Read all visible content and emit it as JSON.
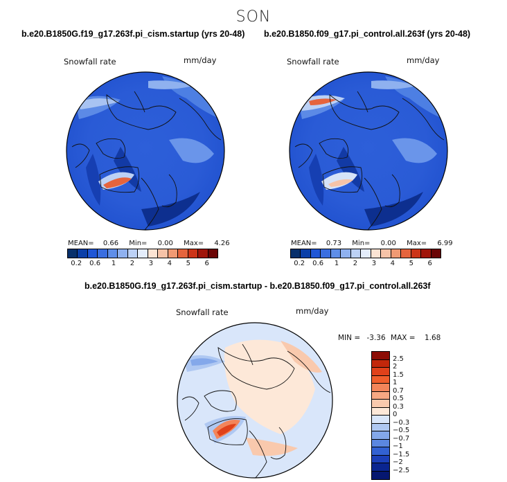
{
  "figure": {
    "season": "SON",
    "diff_title": "b.e20.B1850G.f19_g17.263f.pi_cism.startup - b.e20.B1850.f09_g17.pi_control.all.263f"
  },
  "chart_data": [
    {
      "type": "heatmap",
      "title": "b.e20.B1850G.f19_g17.263f.pi_cism.startup (yrs 20-48)",
      "variable": "Snowfall rate",
      "units": "mm/day",
      "projection": "north polar stereographic",
      "stats": {
        "mean_label": "MEAN=",
        "mean": "0.66",
        "min_label": "Min=",
        "min": "0.00",
        "max_label": "Max=",
        "max": "4.26"
      },
      "colorbar_ticks": [
        "0.2",
        "0.6",
        "1",
        "2",
        "3",
        "4",
        "5",
        "6"
      ]
    },
    {
      "type": "heatmap",
      "title": "b.e20.B1850.f09_g17.pi_control.all.263f (yrs 20-48)",
      "variable": "Snowfall rate",
      "units": "mm/day",
      "projection": "north polar stereographic",
      "stats": {
        "mean_label": "MEAN=",
        "mean": "0.73",
        "min_label": "Min=",
        "min": "0.00",
        "max_label": "Max=",
        "max": "6.99"
      },
      "colorbar_ticks": [
        "0.2",
        "0.6",
        "1",
        "2",
        "3",
        "4",
        "5",
        "6"
      ]
    },
    {
      "type": "heatmap",
      "title": "b.e20.B1850G.f19_g17.263f.pi_cism.startup - b.e20.B1850.f09_g17.pi_control.all.263f",
      "variable": "Snowfall rate",
      "units": "mm/day",
      "projection": "north polar stereographic",
      "stats": {
        "min_label": "MIN =",
        "min": "-3.36",
        "max_label": "MAX =",
        "max": "1.68"
      },
      "colorbar_ticks": [
        "2.5",
        "2",
        "1.5",
        "1",
        "0.7",
        "0.5",
        "0.3",
        "0",
        "−0.3",
        "−0.5",
        "−0.7",
        "−1",
        "−1.5",
        "−2",
        "−2.5"
      ]
    }
  ],
  "colors": {
    "abs_scale": [
      "#08306b",
      "#0b3fa8",
      "#1f56d6",
      "#3a6ee0",
      "#5f8ee8",
      "#8fb1ef",
      "#bcd1f5",
      "#e4edfb",
      "#fbe3d3",
      "#f6c3a8",
      "#f09a74",
      "#e5643d",
      "#cc3418",
      "#a0150a",
      "#6b0505"
    ],
    "diff_scale": [
      "#8c0d05",
      "#c2270b",
      "#e0411a",
      "#f05e2c",
      "#f3855a",
      "#f7a883",
      "#f9c9ad",
      "#fde8d8",
      "#d9e6fa",
      "#afc8f2",
      "#84a8ea",
      "#5b87e0",
      "#3261d2",
      "#1b3fb8",
      "#0a2590",
      "#061770"
    ],
    "land_line": "#111111"
  }
}
